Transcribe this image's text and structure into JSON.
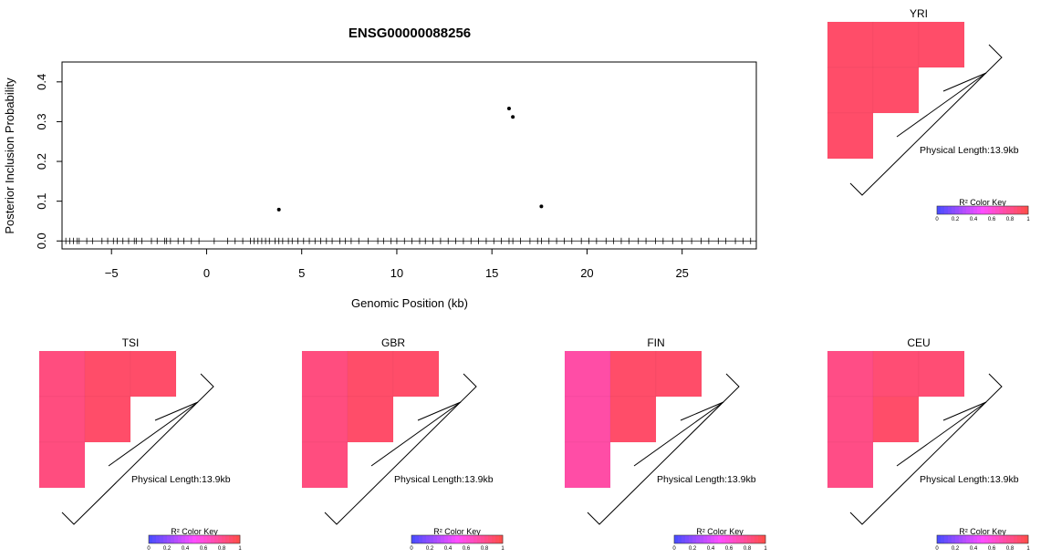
{
  "chart_data": [
    {
      "type": "scatter",
      "title": "ENSG00000088256",
      "xlabel": "Genomic Position (kb)",
      "ylabel": "Posterior Inclusion Probability",
      "xlim": [
        -7.6,
        28.9
      ],
      "ylim": [
        -0.02,
        0.45
      ],
      "xticks": [
        -5,
        0,
        5,
        10,
        15,
        20,
        25
      ],
      "xtick_labels": [
        "−5",
        "0",
        "5",
        "10",
        "15",
        "20",
        "25"
      ],
      "yticks": [
        0.0,
        0.1,
        0.2,
        0.3,
        0.4
      ],
      "ytick_labels": [
        "0.0",
        "0.1",
        "0.2",
        "0.3",
        "0.4"
      ],
      "grid": false,
      "points": [
        {
          "x": 3.8,
          "y": 0.079
        },
        {
          "x": 15.9,
          "y": 0.333
        },
        {
          "x": 16.1,
          "y": 0.312
        },
        {
          "x": 17.6,
          "y": 0.087
        }
      ],
      "rug_baseline_y": 0,
      "rug_positions": [
        -7.4,
        -7.2,
        -7.0,
        -6.8,
        -6.7,
        -6.3,
        -6.0,
        -5.5,
        -5.2,
        -4.9,
        -4.7,
        -4.4,
        -4.1,
        -3.8,
        -3.7,
        -3.4,
        -2.9,
        -2.6,
        -2.2,
        -2.1,
        -1.9,
        -1.5,
        -1.2,
        -0.8,
        -0.4,
        0.4,
        1.1,
        1.5,
        1.9,
        2.3,
        2.5,
        2.7,
        2.9,
        3.1,
        3.3,
        3.6,
        3.8,
        4.0,
        4.3,
        4.5,
        4.8,
        5.1,
        5.4,
        5.7,
        6.0,
        6.3,
        6.6,
        7.0,
        7.3,
        7.6,
        8.0,
        8.5,
        9.0,
        9.3,
        9.7,
        10.0,
        10.4,
        10.8,
        11.2,
        11.5,
        11.9,
        12.3,
        12.7,
        13.1,
        13.5,
        13.9,
        14.3,
        14.7,
        15.1,
        15.5,
        15.9,
        16.1,
        16.5,
        17.0,
        17.4,
        17.6,
        18.0,
        18.4,
        18.8,
        19.2,
        19.7,
        20.1,
        20.5,
        21.0,
        21.4,
        21.8,
        22.2,
        22.7,
        23.1,
        23.6,
        24.0,
        24.5,
        25.0,
        25.5,
        26.0,
        26.4,
        26.9,
        27.3,
        27.8,
        28.2,
        28.6
      ]
    },
    {
      "type": "heatmap",
      "title": "YRI",
      "cells": [
        [
          0.92,
          0.92,
          0.92
        ],
        [
          0.92,
          0.92
        ],
        [
          0.92
        ]
      ],
      "annotation": "Physical Length:13.9kb",
      "colorkey": {
        "label": "R² Color Key",
        "ticks": [
          "0",
          "0.2",
          "0.4",
          "0.6",
          "0.8",
          "1"
        ]
      }
    },
    {
      "type": "heatmap",
      "title": "TSI",
      "cells": [
        [
          0.86,
          0.92,
          0.92
        ],
        [
          0.86,
          0.92
        ],
        [
          0.86
        ]
      ],
      "annotation": "Physical Length:13.9kb",
      "colorkey": {
        "label": "R² Color Key",
        "ticks": [
          "0",
          "0.2",
          "0.4",
          "0.6",
          "0.8",
          "1"
        ]
      }
    },
    {
      "type": "heatmap",
      "title": "GBR",
      "cells": [
        [
          0.86,
          0.92,
          0.92
        ],
        [
          0.86,
          0.92
        ],
        [
          0.86
        ]
      ],
      "annotation": "Physical Length:13.9kb",
      "colorkey": {
        "label": "R² Color Key",
        "ticks": [
          "0",
          "0.2",
          "0.4",
          "0.6",
          "0.8",
          "1"
        ]
      }
    },
    {
      "type": "heatmap",
      "title": "FIN",
      "cells": [
        [
          0.75,
          0.92,
          0.92
        ],
        [
          0.75,
          0.92
        ],
        [
          0.75
        ]
      ],
      "annotation": "Physical Length:13.9kb",
      "colorkey": {
        "label": "R² Color Key",
        "ticks": [
          "0",
          "0.2",
          "0.4",
          "0.6",
          "0.8",
          "1"
        ]
      }
    },
    {
      "type": "heatmap",
      "title": "CEU",
      "cells": [
        [
          0.84,
          0.89,
          0.89
        ],
        [
          0.84,
          0.92
        ],
        [
          0.84
        ]
      ],
      "annotation": "Physical Length:13.9kb",
      "colorkey": {
        "label": "R² Color Key",
        "ticks": [
          "0",
          "0.2",
          "0.4",
          "0.6",
          "0.8",
          "1"
        ]
      }
    }
  ],
  "colors": {
    "ld_low": "#4d4dff",
    "ld_mid": "#ff4dff",
    "ld_high": "#ff4d4d",
    "points": "#000000",
    "axis": "#000000"
  }
}
